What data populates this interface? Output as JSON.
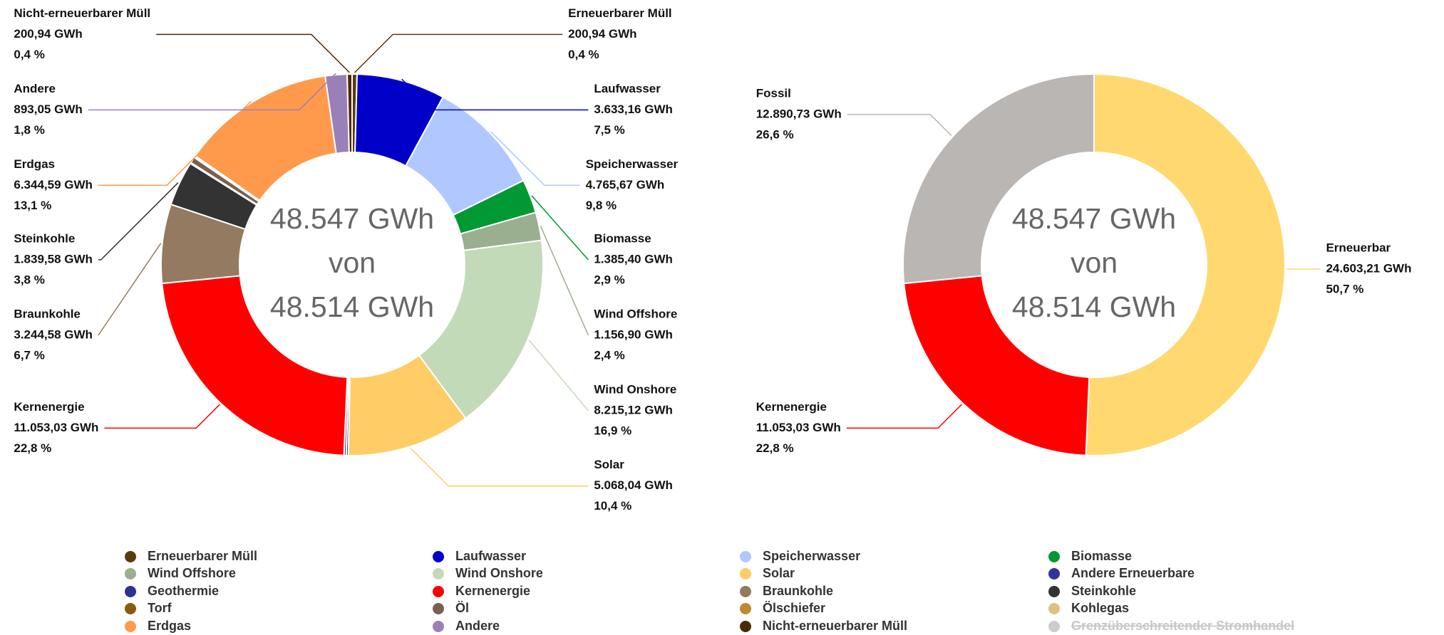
{
  "chart_data": [
    {
      "type": "donut",
      "center_label": [
        "48.547 GWh",
        "von",
        "48.514 GWh"
      ],
      "categories": [
        "Erneuerbarer Müll",
        "Laufwasser",
        "Speicherwasser",
        "Biomasse",
        "Wind Offshore",
        "Wind Onshore",
        "Solar",
        "Andere Erneuerbare",
        "Geothermie",
        "Kernenergie",
        "Braunkohle",
        "Steinkohle",
        "Torf",
        "Öl",
        "Ölschiefer",
        "Kohlegas",
        "Erdgas",
        "Andere",
        "Nicht-erneuerbarer Müll",
        "Grenzüberschreitender Stromhandel"
      ],
      "values": [
        200.94,
        3633.16,
        4765.67,
        1385.4,
        1156.9,
        8215.12,
        5068.04,
        88,
        90,
        11053.03,
        3244.58,
        1839.58,
        40,
        250,
        30,
        48,
        6344.59,
        893.05,
        200.94,
        null
      ],
      "value_labels": [
        "200,94 GWh",
        "3.633,16 GWh",
        "4.765,67 GWh",
        "1.385,40 GWh",
        "1.156,90 GWh",
        "8.215,12 GWh",
        "5.068,04 GWh",
        null,
        null,
        "11.053,03 GWh",
        "3.244,58 GWh",
        "1.839,58 GWh",
        null,
        null,
        null,
        null,
        "6.344,59 GWh",
        "893,05 GWh",
        "200,94 GWh",
        null
      ],
      "percents": [
        0.4,
        7.5,
        9.8,
        2.9,
        2.4,
        16.9,
        10.4,
        null,
        null,
        22.8,
        6.7,
        3.8,
        null,
        null,
        null,
        null,
        13.1,
        1.8,
        0.4,
        null
      ],
      "percent_labels": [
        "0,4 %",
        "7,5 %",
        "9,8 %",
        "2,9 %",
        "2,4 %",
        "16,9 %",
        "10,4 %",
        null,
        null,
        "22,8 %",
        "6,7 %",
        "3,8 %",
        null,
        null,
        null,
        null,
        "13,1 %",
        "1,8 %",
        "0,4 %",
        null
      ],
      "colors": [
        "#5a3a10",
        "#0000c8",
        "#b0c8ff",
        "#009933",
        "#9aae90",
        "#c2dab8",
        "#ffcc66",
        "#333399",
        "#2e3192",
        "#ff0000",
        "#947a60",
        "#333333",
        "#8b5a10",
        "#7a6050",
        "#c08830",
        "#e0c080",
        "#ff9a4d",
        "#9a80b8",
        "#4a2a08",
        "#cccccc"
      ],
      "struck": [
        19
      ],
      "legend": true
    },
    {
      "type": "donut",
      "center_label": [
        "48.547 GWh",
        "von",
        "48.514 GWh"
      ],
      "categories": [
        "Erneuerbar",
        "Kernenergie",
        "Fossil"
      ],
      "values": [
        24603.21,
        11053.03,
        12890.73
      ],
      "value_labels": [
        "24.603,21 GWh",
        "11.053,03 GWh",
        "12.890,73 GWh"
      ],
      "percents": [
        50.7,
        22.8,
        26.6
      ],
      "percent_labels": [
        "50,7 %",
        "22,8 %",
        "26,6 %"
      ],
      "colors": [
        "#ffd970",
        "#ff0000",
        "#bab6b3"
      ],
      "legend": false
    }
  ]
}
